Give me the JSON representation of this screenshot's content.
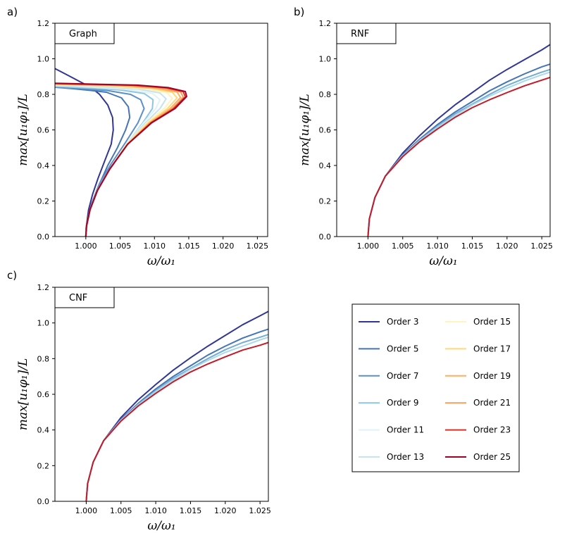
{
  "chart_data": [
    {
      "type": "line",
      "panel_letter": "a)",
      "box_label": "Graph",
      "xlabel": "ω/ω₁",
      "ylabel": "max[u₁φ₁]/L",
      "xlim": [
        0.9955,
        1.0265
      ],
      "ylim": [
        0,
        1.2
      ],
      "xticks": [
        "1.000",
        "1.005",
        "1.010",
        "1.015",
        "1.020",
        "1.025"
      ],
      "yticks": [
        "0.0",
        "0.2",
        "0.4",
        "0.6",
        "0.8",
        "1.0",
        "1.2"
      ],
      "grid": false,
      "series": [
        {
          "name": "Order 3",
          "color": "#313695",
          "x": [
            0.9955,
            0.9975,
            0.9992,
            1.0007,
            1.002,
            1.0032,
            1.0039,
            1.004,
            1.0037,
            1.0028,
            1.0018,
            1.001,
            1.0004,
            1.00005,
            1.0
          ],
          "y": [
            0.945,
            0.905,
            0.87,
            0.84,
            0.8,
            0.74,
            0.67,
            0.6,
            0.52,
            0.43,
            0.33,
            0.24,
            0.15,
            0.05,
            0.0
          ]
        },
        {
          "name": "Order 5",
          "color": "#4575b4",
          "x": [
            0.9955,
            0.998,
            1.0005,
            1.003,
            1.0052,
            1.0062,
            1.0064,
            1.0058,
            1.0046,
            1.0032,
            1.0018,
            1.0008,
            1.0002,
            1.0
          ],
          "y": [
            0.84,
            0.832,
            0.823,
            0.812,
            0.78,
            0.73,
            0.67,
            0.6,
            0.5,
            0.4,
            0.28,
            0.18,
            0.08,
            0.0
          ]
        },
        {
          "name": "Order 7",
          "color": "#5b8fc9",
          "x": [
            0.9955,
            0.999,
            1.003,
            1.0065,
            1.008,
            1.0085,
            1.0076,
            1.0058,
            1.0037,
            1.002,
            1.0008,
            1.0002,
            1.0
          ],
          "y": [
            0.84,
            0.832,
            0.822,
            0.8,
            0.77,
            0.72,
            0.64,
            0.53,
            0.41,
            0.3,
            0.18,
            0.08,
            0.0
          ]
        },
        {
          "name": "Order 9",
          "color": "#8ec6e0",
          "x": [
            0.9955,
            1.0,
            1.005,
            1.0085,
            1.0098,
            1.0097,
            1.0083,
            1.006,
            1.0035,
            1.0018,
            1.0007,
            1.0002,
            1.0
          ],
          "y": [
            0.845,
            0.836,
            0.825,
            0.805,
            0.77,
            0.72,
            0.64,
            0.52,
            0.38,
            0.27,
            0.16,
            0.07,
            0.0
          ]
        },
        {
          "name": "Order 11",
          "color": "#e0f3f8",
          "x": [
            0.9955,
            1.001,
            1.006,
            1.0097,
            1.0108,
            1.0102,
            1.0084,
            1.006,
            1.0035,
            1.0017,
            1.0006,
            1.0001,
            1.0
          ],
          "y": [
            0.85,
            0.84,
            0.828,
            0.805,
            0.77,
            0.72,
            0.64,
            0.52,
            0.38,
            0.26,
            0.15,
            0.06,
            0.0
          ]
        },
        {
          "name": "Order 13",
          "color": "#c6e3ef",
          "x": [
            0.9955,
            1.002,
            1.0075,
            1.0108,
            1.0117,
            1.0108,
            1.0087,
            1.006,
            1.0035,
            1.0017,
            1.0006,
            1.0001,
            1.0
          ],
          "y": [
            0.852,
            0.843,
            0.83,
            0.808,
            0.775,
            0.72,
            0.64,
            0.52,
            0.38,
            0.26,
            0.15,
            0.06,
            0.0
          ]
        },
        {
          "name": "Order 15",
          "color": "#fff3bf",
          "x": [
            0.9955,
            1.003,
            1.0085,
            1.0118,
            1.0126,
            1.0114,
            1.0089,
            1.006,
            1.0035,
            1.0017,
            1.0006,
            1.0001,
            1.0
          ],
          "y": [
            0.855,
            0.846,
            0.832,
            0.81,
            0.778,
            0.72,
            0.64,
            0.52,
            0.38,
            0.26,
            0.15,
            0.06,
            0.0
          ]
        },
        {
          "name": "Order 17",
          "color": "#fed976",
          "x": [
            0.9955,
            1.004,
            1.0095,
            1.0126,
            1.0133,
            1.0119,
            1.0091,
            1.006,
            1.0035,
            1.0017,
            1.0006,
            1.0001,
            1.0
          ],
          "y": [
            0.857,
            0.848,
            0.834,
            0.812,
            0.78,
            0.72,
            0.64,
            0.52,
            0.38,
            0.26,
            0.15,
            0.06,
            0.0
          ]
        },
        {
          "name": "Order 19",
          "color": "#fdae61",
          "x": [
            0.9955,
            1.005,
            1.0103,
            1.0133,
            1.0138,
            1.0123,
            1.0093,
            1.0061,
            1.0035,
            1.0017,
            1.0006,
            1.0001,
            1.0
          ],
          "y": [
            0.858,
            0.849,
            0.835,
            0.813,
            0.782,
            0.72,
            0.64,
            0.52,
            0.38,
            0.26,
            0.15,
            0.06,
            0.0
          ]
        },
        {
          "name": "Order 21",
          "color": "#f4a060",
          "x": [
            0.9955,
            1.006,
            1.011,
            1.0138,
            1.0142,
            1.0126,
            1.0094,
            1.0061,
            1.0035,
            1.0017,
            1.0006,
            1.0001,
            1.0
          ],
          "y": [
            0.86,
            0.85,
            0.836,
            0.814,
            0.784,
            0.72,
            0.64,
            0.52,
            0.38,
            0.26,
            0.15,
            0.06,
            0.0
          ]
        },
        {
          "name": "Order 23",
          "color": "#d73027",
          "x": [
            0.9955,
            1.007,
            1.0117,
            1.0142,
            1.0145,
            1.0128,
            1.0095,
            1.0061,
            1.0035,
            1.0017,
            1.0006,
            1.0001,
            1.0
          ],
          "y": [
            0.861,
            0.851,
            0.837,
            0.815,
            0.786,
            0.72,
            0.64,
            0.52,
            0.38,
            0.26,
            0.15,
            0.06,
            0.0
          ]
        },
        {
          "name": "Order 25",
          "color": "#a50026",
          "x": [
            0.9955,
            1.0075,
            1.012,
            1.0145,
            1.0147,
            1.013,
            1.0096,
            1.0061,
            1.0035,
            1.0017,
            1.0006,
            1.0001,
            1.0
          ],
          "y": [
            0.862,
            0.852,
            0.838,
            0.816,
            0.788,
            0.72,
            0.64,
            0.52,
            0.38,
            0.26,
            0.15,
            0.06,
            0.0
          ]
        }
      ]
    },
    {
      "type": "line",
      "panel_letter": "b)",
      "box_label": "RNF",
      "xlabel": "ω/ω₁",
      "ylabel": "max[u₁φ₁]/L",
      "xlim": [
        0.9955,
        1.0262
      ],
      "ylim": [
        0,
        1.2
      ],
      "xticks": [
        "1.000",
        "1.005",
        "1.010",
        "1.015",
        "1.020",
        "1.025"
      ],
      "yticks": [
        "0.0",
        "0.2",
        "0.4",
        "0.6",
        "0.8",
        "1.0",
        "1.2"
      ],
      "grid": false,
      "series": [
        {
          "name": "Order 3",
          "color": "#313695",
          "x": [
            1.0,
            1.0002,
            1.001,
            1.0025,
            1.005,
            1.0075,
            1.01,
            1.0125,
            1.015,
            1.0175,
            1.02,
            1.0225,
            1.025,
            1.0262
          ],
          "y": [
            0.0,
            0.1,
            0.22,
            0.34,
            0.47,
            0.57,
            0.66,
            0.74,
            0.81,
            0.88,
            0.94,
            0.995,
            1.05,
            1.08
          ]
        },
        {
          "name": "Order 5",
          "color": "#4575b4",
          "x": [
            1.0,
            1.0002,
            1.001,
            1.0025,
            1.005,
            1.0075,
            1.01,
            1.0125,
            1.015,
            1.0175,
            1.02,
            1.0225,
            1.025,
            1.0262
          ],
          "y": [
            0.0,
            0.1,
            0.22,
            0.34,
            0.46,
            0.55,
            0.63,
            0.7,
            0.76,
            0.82,
            0.87,
            0.915,
            0.955,
            0.97
          ]
        },
        {
          "name": "Order 7",
          "color": "#74add1",
          "x": [
            1.0,
            1.0002,
            1.001,
            1.0025,
            1.005,
            1.0075,
            1.01,
            1.0125,
            1.015,
            1.0175,
            1.02,
            1.0225,
            1.025,
            1.0262
          ],
          "y": [
            0.0,
            0.1,
            0.22,
            0.34,
            0.455,
            0.545,
            0.62,
            0.69,
            0.745,
            0.8,
            0.85,
            0.89,
            0.925,
            0.94
          ]
        },
        {
          "name": "Order 9",
          "color": "#abd9e9",
          "x": [
            1.0,
            1.0002,
            1.001,
            1.0025,
            1.005,
            1.0075,
            1.01,
            1.0125,
            1.015,
            1.0175,
            1.02,
            1.0225,
            1.025,
            1.0262
          ],
          "y": [
            0.0,
            0.1,
            0.22,
            0.34,
            0.455,
            0.54,
            0.615,
            0.68,
            0.74,
            0.79,
            0.835,
            0.875,
            0.91,
            0.925
          ]
        },
        {
          "name": "Order 25",
          "color": "#c41a28",
          "x": [
            1.0,
            1.0002,
            1.001,
            1.0025,
            1.005,
            1.0075,
            1.01,
            1.0125,
            1.015,
            1.0175,
            1.02,
            1.0225,
            1.025,
            1.0262
          ],
          "y": [
            0.0,
            0.1,
            0.22,
            0.34,
            0.45,
            0.535,
            0.605,
            0.67,
            0.725,
            0.77,
            0.81,
            0.848,
            0.88,
            0.895
          ]
        }
      ]
    },
    {
      "type": "line",
      "panel_letter": "c)",
      "box_label": "CNF",
      "xlabel": "ω/ω₁",
      "ylabel": "max[u₁φ₁]/L",
      "xlim": [
        0.9955,
        1.0262
      ],
      "ylim": [
        0,
        1.2
      ],
      "xticks": [
        "1.000",
        "1.005",
        "1.010",
        "1.015",
        "1.020",
        "1.025"
      ],
      "yticks": [
        "0.0",
        "0.2",
        "0.4",
        "0.6",
        "0.8",
        "1.0",
        "1.2"
      ],
      "grid": false,
      "series": [
        {
          "name": "Order 3",
          "color": "#313695",
          "x": [
            1.0,
            1.0002,
            1.001,
            1.0025,
            1.005,
            1.0075,
            1.01,
            1.0125,
            1.015,
            1.0175,
            1.02,
            1.0225,
            1.025,
            1.0262
          ],
          "y": [
            0.0,
            0.1,
            0.22,
            0.34,
            0.47,
            0.57,
            0.655,
            0.735,
            0.805,
            0.87,
            0.93,
            0.99,
            1.04,
            1.065
          ]
        },
        {
          "name": "Order 5",
          "color": "#4575b4",
          "x": [
            1.0,
            1.0002,
            1.001,
            1.0025,
            1.005,
            1.0075,
            1.01,
            1.0125,
            1.015,
            1.0175,
            1.02,
            1.0225,
            1.025,
            1.0262
          ],
          "y": [
            0.0,
            0.1,
            0.22,
            0.34,
            0.46,
            0.55,
            0.63,
            0.7,
            0.76,
            0.82,
            0.87,
            0.915,
            0.95,
            0.965
          ]
        },
        {
          "name": "Order 7",
          "color": "#74add1",
          "x": [
            1.0,
            1.0002,
            1.001,
            1.0025,
            1.005,
            1.0075,
            1.01,
            1.0125,
            1.015,
            1.0175,
            1.02,
            1.0225,
            1.025,
            1.0262
          ],
          "y": [
            0.0,
            0.1,
            0.22,
            0.34,
            0.455,
            0.545,
            0.62,
            0.69,
            0.745,
            0.8,
            0.85,
            0.89,
            0.92,
            0.935
          ]
        },
        {
          "name": "Order 9",
          "color": "#abd9e9",
          "x": [
            1.0,
            1.0002,
            1.001,
            1.0025,
            1.005,
            1.0075,
            1.01,
            1.0125,
            1.015,
            1.0175,
            1.02,
            1.0225,
            1.025,
            1.0262
          ],
          "y": [
            0.0,
            0.1,
            0.22,
            0.34,
            0.455,
            0.54,
            0.615,
            0.68,
            0.74,
            0.79,
            0.835,
            0.87,
            0.905,
            0.92
          ]
        },
        {
          "name": "Order 25",
          "color": "#c41a28",
          "x": [
            1.0,
            1.0002,
            1.001,
            1.0025,
            1.005,
            1.0075,
            1.01,
            1.0125,
            1.015,
            1.0175,
            1.02,
            1.0225,
            1.025,
            1.0262
          ],
          "y": [
            0.0,
            0.1,
            0.22,
            0.34,
            0.45,
            0.535,
            0.605,
            0.67,
            0.725,
            0.77,
            0.81,
            0.848,
            0.875,
            0.89
          ]
        }
      ]
    }
  ],
  "legend": {
    "placement": "bottom-right",
    "entries": [
      {
        "label": "Order 3",
        "color": "#313695"
      },
      {
        "label": "Order 5",
        "color": "#4575b4"
      },
      {
        "label": "Order 7",
        "color": "#5b8fc9"
      },
      {
        "label": "Order 9",
        "color": "#8ec6e0"
      },
      {
        "label": "Order 11",
        "color": "#e0f3f8"
      },
      {
        "label": "Order 13",
        "color": "#c6e3ef"
      },
      {
        "label": "Order 15",
        "color": "#fff3bf"
      },
      {
        "label": "Order 17",
        "color": "#fed976"
      },
      {
        "label": "Order 19",
        "color": "#fdae61"
      },
      {
        "label": "Order 21",
        "color": "#f4a060"
      },
      {
        "label": "Order 23",
        "color": "#d73027"
      },
      {
        "label": "Order 25",
        "color": "#a50026"
      }
    ]
  }
}
